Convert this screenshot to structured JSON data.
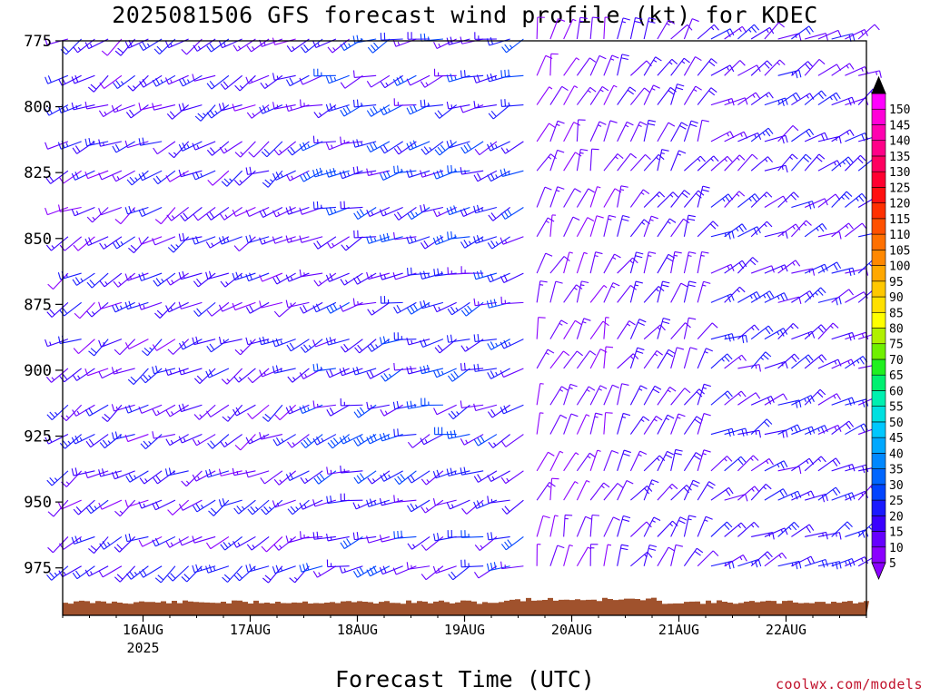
{
  "chart_data": {
    "type": "wind_barb_time_height",
    "title": "2025081506 GFS forecast wind profile (kt) for KDEC",
    "xlabel": "Forecast Time (UTC)",
    "ylabel": "",
    "y_axis": {
      "ticks": [
        775,
        800,
        825,
        850,
        875,
        900,
        925,
        950,
        975
      ],
      "ylim": [
        993,
        775
      ],
      "unit": "hPa"
    },
    "x_axis": {
      "ticks": [
        {
          "label": "16AUG",
          "sublabel": "2025",
          "day": 1
        },
        {
          "label": "17AUG",
          "sublabel": "",
          "day": 2
        },
        {
          "label": "18AUG",
          "sublabel": "",
          "day": 3
        },
        {
          "label": "19AUG",
          "sublabel": "",
          "day": 4
        },
        {
          "label": "20AUG",
          "sublabel": "",
          "day": 5
        },
        {
          "label": "21AUG",
          "sublabel": "",
          "day": 6
        },
        {
          "label": "22AUG",
          "sublabel": "",
          "day": 7
        }
      ],
      "xlim_days": [
        0.25,
        7.75
      ],
      "time_step_hours": 6
    },
    "colorbar": {
      "values": [
        5,
        10,
        15,
        20,
        25,
        30,
        35,
        40,
        45,
        50,
        55,
        60,
        65,
        70,
        75,
        80,
        85,
        90,
        95,
        100,
        105,
        110,
        115,
        120,
        125,
        130,
        135,
        140,
        145,
        150
      ],
      "colors": [
        "#8b00ff",
        "#6600ff",
        "#3a00ff",
        "#1a1aff",
        "#0044ff",
        "#0066ff",
        "#0088ff",
        "#00a8ff",
        "#00c8ff",
        "#00e0e0",
        "#00f0b0",
        "#00f070",
        "#20f020",
        "#70f000",
        "#b0f000",
        "#ffff00",
        "#ffe000",
        "#ffc800",
        "#ffa800",
        "#ff8800",
        "#ff7000",
        "#ff5000",
        "#ff3000",
        "#ff1010",
        "#ff0030",
        "#ff0060",
        "#ff0088",
        "#ff00b0",
        "#ff00d8",
        "#ff00ff"
      ],
      "unit": "kt"
    },
    "terrain_color": "#a0522d",
    "surface_pressure_hpa": 988,
    "wind_regimes": [
      {
        "days": [
          0.25,
          2.6
        ],
        "direction_deg": 240,
        "speed_kt_range": [
          8,
          25
        ]
      },
      {
        "days": [
          2.6,
          4.6
        ],
        "direction_deg": 250,
        "speed_kt_range": [
          10,
          30
        ]
      },
      {
        "days": [
          4.6,
          5.4
        ],
        "direction_deg": 20,
        "speed_kt_range": [
          5,
          15
        ]
      },
      {
        "days": [
          5.4,
          6.2
        ],
        "direction_deg": 30,
        "speed_kt_range": [
          10,
          20
        ]
      },
      {
        "days": [
          6.2,
          7.75
        ],
        "direction_deg": 60,
        "speed_kt_range": [
          10,
          25
        ]
      }
    ]
  },
  "credit": "coolwx.com/models"
}
